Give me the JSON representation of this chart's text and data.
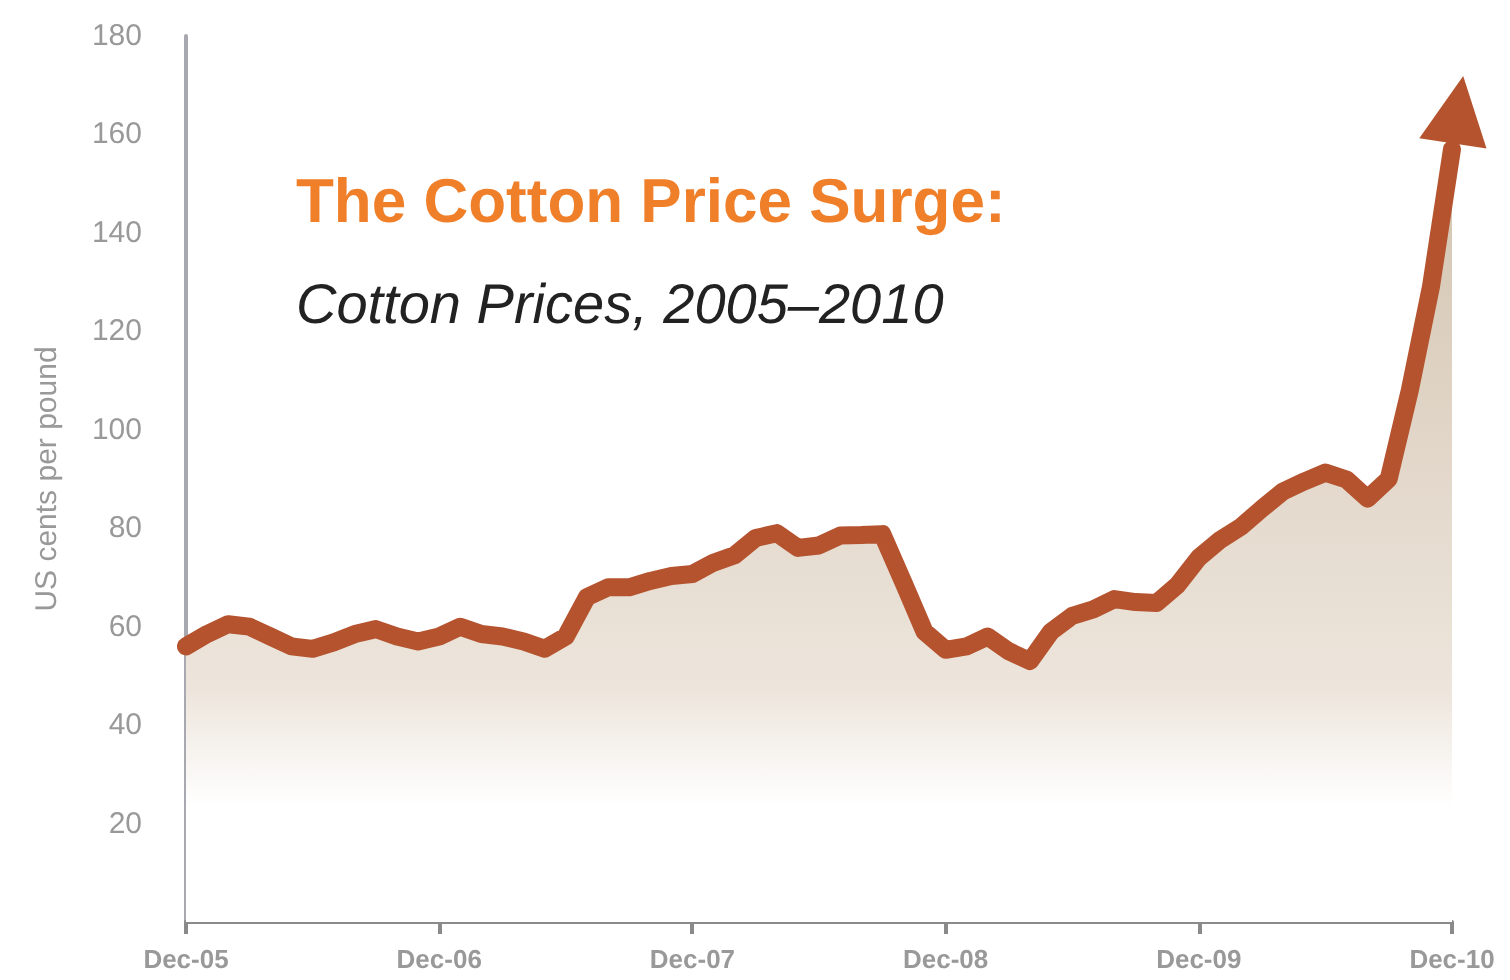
{
  "chart_data": {
    "type": "area",
    "title": "The Cotton Price Surge:",
    "subtitle": "Cotton Prices, 2005–2010",
    "ylabel": "US cents per pound",
    "categories": [
      "Dec-05",
      null,
      null,
      null,
      null,
      null,
      null,
      null,
      null,
      null,
      null,
      null,
      "Dec-06",
      null,
      null,
      null,
      null,
      null,
      null,
      null,
      null,
      null,
      null,
      null,
      "Dec-07",
      null,
      null,
      null,
      null,
      null,
      null,
      null,
      null,
      null,
      null,
      null,
      "Dec-08",
      null,
      null,
      null,
      null,
      null,
      null,
      null,
      null,
      null,
      null,
      null,
      "Dec-09",
      null,
      null,
      null,
      null,
      null,
      null,
      null,
      null,
      null,
      null,
      null,
      "Dec-10"
    ],
    "series": [
      {
        "color": "#b5532f",
        "values": [
          56,
          58.5,
          60.5,
          60,
          58,
          56,
          55.5,
          56.8,
          58.5,
          59.5,
          58,
          57,
          58,
          60,
          58.5,
          58,
          57,
          55.5,
          58,
          66,
          68,
          68,
          69.3,
          70.3,
          70.7,
          73,
          74.5,
          78,
          79,
          76,
          76.5,
          78.5,
          78.6,
          78.8,
          69,
          59,
          55.3,
          56,
          58,
          55,
          53,
          59,
          62.2,
          63.5,
          65.6,
          65,
          64.8,
          68.5,
          74,
          77.6,
          80.3,
          84,
          87.5,
          89.5,
          91.3,
          89.9,
          86,
          90,
          108,
          129,
          157
        ]
      }
    ],
    "ylim": [
      0,
      180
    ],
    "yticks": [
      20,
      40,
      60,
      80,
      100,
      120,
      140,
      160,
      180
    ],
    "grid": false,
    "line_style": "solid"
  }
}
